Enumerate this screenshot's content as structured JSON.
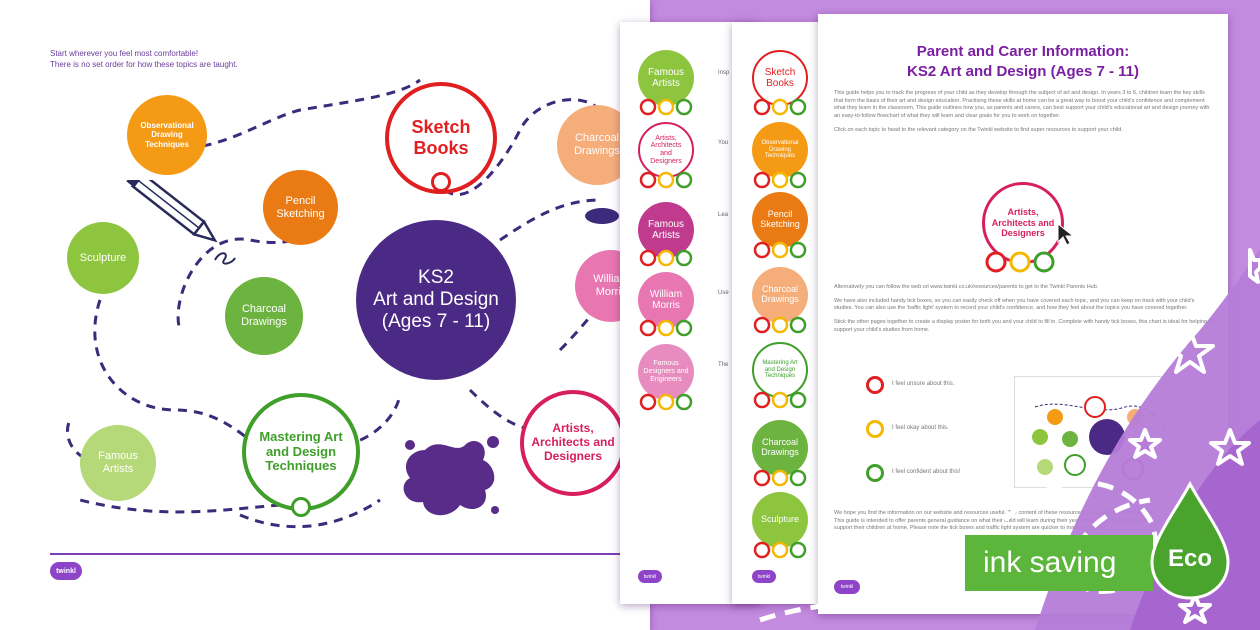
{
  "colors": {
    "purple": "#4b2a86",
    "accent": "#8e24aa",
    "red": "#e02020",
    "green": "#3f9f2a",
    "orange": "#f07c14",
    "lightgreen": "#9ccc65"
  },
  "main_page": {
    "intro_line1": "Start wherever you feel most comfortable!",
    "intro_line2": "There is no set order for how these topics are taught.",
    "center_line1": "KS2",
    "center_line2": "Art and Design",
    "center_line3": "(Ages 7 - 11)",
    "nodes": {
      "sketch_books": "Sketch Books",
      "observational": "Observational Drawing Techniques",
      "pencil": "Pencil Sketching",
      "sculpture": "Sculpture",
      "charcoal_left": "Charcoal Drawings",
      "charcoal_right": "Charcoal Drawings",
      "mastering": "Mastering Art and Design Techniques",
      "famous": "Famous Artists",
      "william": "William Morris",
      "artists": "Artists, Architects and Designers"
    },
    "logo": "twinkl"
  },
  "page2": {
    "nodes": [
      "Famous Artists",
      "Artists, Architects and Designers",
      "Famous Artists",
      "William Morris",
      "Famous Designers and Engineers"
    ],
    "snippets": [
      "Insp",
      "You",
      "Lea",
      "Use",
      "The"
    ],
    "logo": "twinkl"
  },
  "page3": {
    "nodes": [
      "Sketch Books",
      "Observational Drawing Techniques",
      "Pencil Sketching",
      "Charcoal Drawings",
      "Mastering Art and Design Techniques",
      "Charcoal Drawings",
      "Sculpture"
    ],
    "logo": "twinkl"
  },
  "front_page": {
    "title_line1": "Parent and Carer Information:",
    "title_line2": "KS2 Art and Design (Ages 7 - 11)",
    "para1": "This guide helps you to track the progress of your child as they develop through the subject of art and design. In years 3 to 6, children learn the key skills that form the basis of their art and design education. Practising these skills at home can be a great way to boost your child's confidence and complement what they learn in the classroom. This guide outlines how you, as parents and carers, can best support your child's educational art and design journey with an easy-to-follow flowchart of what they will learn and clear goals for you to work on together.",
    "para2": "Click on each topic to head to the relevant category on the Twinkl website to find super resources to support your child.",
    "example_node": "Artists, Architects and Designers",
    "para3": "Alternatively you can follow the web url www.twinkl.co.uk/resources/parents to get to the Twinkl Parents Hub.",
    "para4": "We have also included handy tick boxes, so you can easily check off when you have covered each topic, and you can keep on track with your child's studies. You can also use the 'traffic light' system to record your child's confidence, and how they feel about the topics you have covered together.",
    "para5": "Stick the other pages together to create a display poster for both you and your child to fill in. Complete with handy tick boxes, this chart is ideal for helping to support your child's studies from home.",
    "legend": [
      "I feel unsure about this.",
      "I feel okay about this.",
      "I feel confident about this!"
    ],
    "para6": "We hope you find the information on our website and resources useful. The content of these resources is provided for purposes only. This guide is intended to offer parents general guidance on what their child will learn during their year group and where they could support their children at home. Please note the tick boxes and traffic light system are quicker to mark out of date.",
    "logo": "twinkl"
  },
  "badge": {
    "label": "ink saving",
    "eco": "Eco"
  }
}
